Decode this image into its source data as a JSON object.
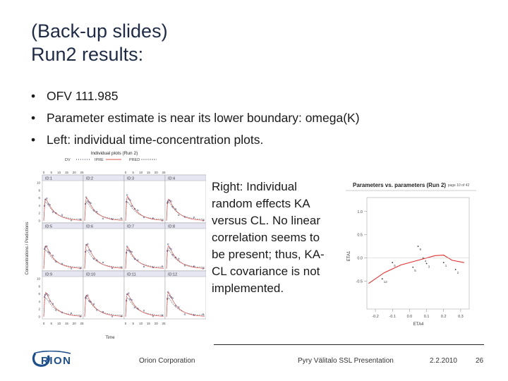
{
  "slide": {
    "title_line1": "(Back-up slides)",
    "title_line2": "Run2 results:",
    "bullets": [
      "OFV 111.985",
      "Parameter estimate is near its lower boundary: omega(K)",
      "Left: individual time-concentration plots."
    ],
    "right_note": "Right: Individual random effects KA  versus CL. No linear correlation seems to be present; thus, KA-CL covariance is not implemented."
  },
  "left_plot": {
    "title": "Individual plots (Run 2)",
    "legend": [
      "DV",
      "IPRE",
      "PRED"
    ],
    "panels": [
      "ID:1",
      "ID:2",
      "ID:3",
      "ID:4",
      "ID:5",
      "ID:6",
      "ID:7",
      "ID:8",
      "ID:9",
      "ID:10",
      "ID:11",
      "ID:12"
    ],
    "y_label": "Concentrations / Predictions",
    "x_label": "Time",
    "x_ticks": [
      "0",
      "5",
      "10",
      "15",
      "20",
      "25"
    ],
    "y_ticks": [
      "0",
      "2",
      "4",
      "6",
      "8",
      "10"
    ],
    "colors": {
      "ipre": "#d9534f",
      "pred": "#666666",
      "dv": "#333366"
    }
  },
  "right_plot": {
    "title": "Parameters vs. parameters (Run 2)",
    "page_label": "page 10 of 42",
    "y_label": "ETA1",
    "x_label": "ETA4",
    "y_ticks": [
      "1.0",
      "0.5",
      "0.0",
      "-0.5"
    ],
    "x_ticks": [
      "-0.2",
      "-0.1",
      "0.0",
      "0.1",
      "0.2",
      "0.3"
    ],
    "point_labels": [
      "12",
      "6",
      "9",
      "4",
      "5",
      "1",
      "2",
      "3"
    ],
    "line_color": "#e03030"
  },
  "footer": {
    "company": "Orion Corporation",
    "author_event": "Pyry Välitalo   SSL Presentation",
    "date": "2.2.2010",
    "page": "26",
    "logo_text": "ORION",
    "logo_color": "#1f4f8a"
  }
}
